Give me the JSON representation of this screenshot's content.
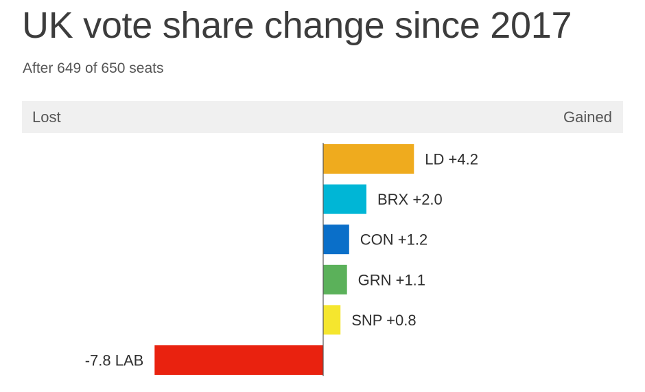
{
  "header": {
    "title": "UK vote share change since 2017",
    "subtitle": "After 649 of 650 seats"
  },
  "axis_band": {
    "left_label": "Lost",
    "right_label": "Gained"
  },
  "chart_data": {
    "type": "bar",
    "orientation": "horizontal",
    "title": "UK vote share change since 2017",
    "subtitle": "After 649 of 650 seats",
    "categories": [
      "LD",
      "BRX",
      "CON",
      "GRN",
      "SNP",
      "LAB"
    ],
    "values": [
      4.2,
      2.0,
      1.2,
      1.1,
      0.8,
      -7.8
    ],
    "value_labels": [
      "+4.2",
      "+2.0",
      "+1.2",
      "+1.1",
      "+0.8",
      "-7.8"
    ],
    "colors": [
      "#efab1e",
      "#00b6d6",
      "#0a6fc9",
      "#5bb15a",
      "#f5e62e",
      "#e9220f"
    ],
    "xlim": [
      -9.5,
      9.5
    ],
    "grid": false,
    "legend": "none"
  }
}
